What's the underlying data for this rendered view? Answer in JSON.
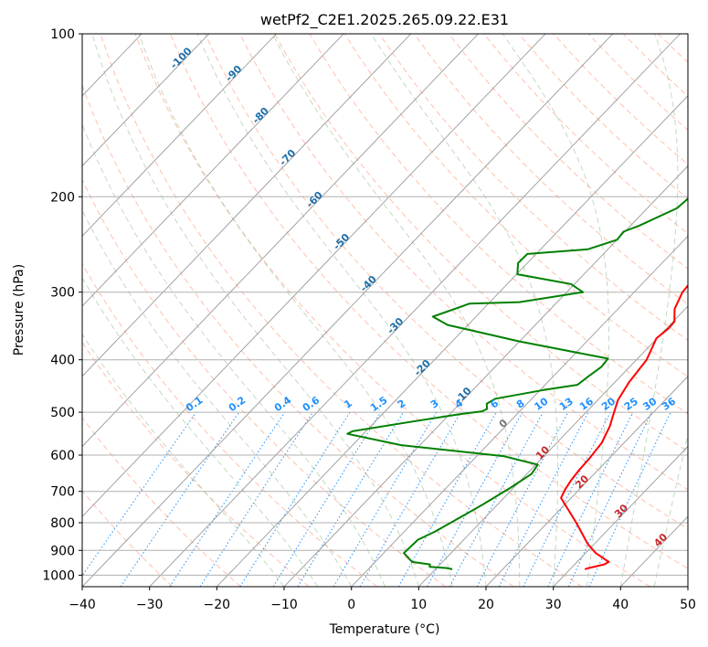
{
  "chart_data": {
    "type": "line",
    "title": "wetPf2_C2E1.2025.265.09.22.E31",
    "xlabel": "Temperature (°C)",
    "ylabel": "Pressure (hPa)",
    "xlim": [
      -40,
      50
    ],
    "ylim": [
      1050,
      100
    ],
    "y_scale": "log",
    "grid": true,
    "x_ticks": [
      -40,
      -30,
      -20,
      -10,
      0,
      10,
      20,
      30,
      40,
      50
    ],
    "y_ticks": [
      100,
      200,
      300,
      400,
      500,
      600,
      700,
      800,
      900,
      1000
    ],
    "isotherm_labels": [
      -100,
      -90,
      -80,
      -70,
      -60,
      -50,
      -40,
      -30,
      -20,
      -10,
      0,
      10,
      20,
      30,
      40
    ],
    "mixing_ratio_labels": [
      "0.1",
      "0.2",
      "0.4",
      "0.6",
      "1",
      "1.5",
      "2",
      "3",
      "4",
      "6",
      "8",
      "10",
      "13",
      "16",
      "20",
      "25",
      "30",
      "36"
    ],
    "colors": {
      "temperature": "#ff0000",
      "dewpoint": "#008000",
      "isotherm": "#999999",
      "dry_adiabat": "#ff8c69",
      "moist_adiabat": "#8fbc8f",
      "mixing_ratio": "#1e90ff",
      "isotherm_label": "#1f6fa8",
      "isotherm_label_warm": "#c62828",
      "isotherm_label_zero": "#777777"
    },
    "series": [
      {
        "key": "temperature",
        "points": [
          [
            32.2,
            975
          ],
          [
            32.6,
            970
          ],
          [
            34.4,
            955
          ],
          [
            34.7,
            945
          ],
          [
            33.8,
            935
          ],
          [
            31.5,
            910
          ],
          [
            29.0,
            875
          ],
          [
            24.3,
            800
          ],
          [
            18.5,
            720
          ],
          [
            17.9,
            695
          ],
          [
            17.5,
            670
          ],
          [
            17.2,
            640
          ],
          [
            17.1,
            612
          ],
          [
            16.7,
            570
          ],
          [
            15.5,
            530
          ],
          [
            14.6,
            510
          ],
          [
            13.0,
            475
          ],
          [
            12.1,
            440
          ],
          [
            11.5,
            400
          ],
          [
            9.9,
            365
          ],
          [
            10.3,
            350
          ],
          [
            10.2,
            340
          ],
          [
            9.4,
            332
          ],
          [
            8.4,
            322
          ],
          [
            7.2,
            300
          ],
          [
            6.5,
            262
          ],
          [
            4.0,
            220
          ],
          [
            2.1,
            190
          ],
          [
            1.2,
            165
          ],
          [
            0.3,
            140
          ],
          [
            0.0,
            125
          ],
          [
            0.8,
            120
          ],
          [
            3.2,
            112
          ],
          [
            5.2,
            108
          ],
          [
            6.4,
            100
          ]
        ]
      },
      {
        "key": "dewpoint",
        "points": [
          [
            12.5,
            975
          ],
          [
            11.5,
            970
          ],
          [
            8.8,
            965
          ],
          [
            8.5,
            955
          ],
          [
            5.5,
            945
          ],
          [
            3.0,
            910
          ],
          [
            3.2,
            860
          ],
          [
            4.6,
            830
          ],
          [
            6.0,
            790
          ],
          [
            7.8,
            740
          ],
          [
            9.5,
            690
          ],
          [
            10.7,
            650
          ],
          [
            10.3,
            625
          ],
          [
            4.1,
            603
          ],
          [
            -12.8,
            575
          ],
          [
            -22.4,
            548
          ],
          [
            -22.0,
            542
          ],
          [
            -14.4,
            520
          ],
          [
            -8.9,
            505
          ],
          [
            -5.6,
            498
          ],
          [
            -5.2,
            493
          ],
          [
            -6.0,
            482
          ],
          [
            -5.4,
            472
          ],
          [
            0.5,
            455
          ],
          [
            4.8,
            445
          ],
          [
            5.2,
            430
          ],
          [
            5.8,
            412
          ],
          [
            5.6,
            398
          ],
          [
            -10.0,
            370
          ],
          [
            -23.0,
            345
          ],
          [
            -26.4,
            333
          ],
          [
            -22.8,
            315
          ],
          [
            -15.6,
            313
          ],
          [
            -7.6,
            300
          ],
          [
            -10.5,
            290
          ],
          [
            -19.9,
            278
          ],
          [
            -21.4,
            265
          ],
          [
            -21.3,
            255
          ],
          [
            -13.0,
            250
          ],
          [
            -10.0,
            240
          ],
          [
            -10.2,
            232
          ],
          [
            -8.7,
            226
          ],
          [
            -5.6,
            210
          ],
          [
            -5.1,
            195
          ],
          [
            -5.1,
            175
          ],
          [
            -5.6,
            160
          ],
          [
            -3.0,
            143
          ],
          [
            -0.7,
            130
          ],
          [
            -0.6,
            118
          ],
          [
            -0.4,
            110
          ],
          [
            0.8,
            105
          ],
          [
            2.2,
            100
          ]
        ]
      }
    ]
  }
}
